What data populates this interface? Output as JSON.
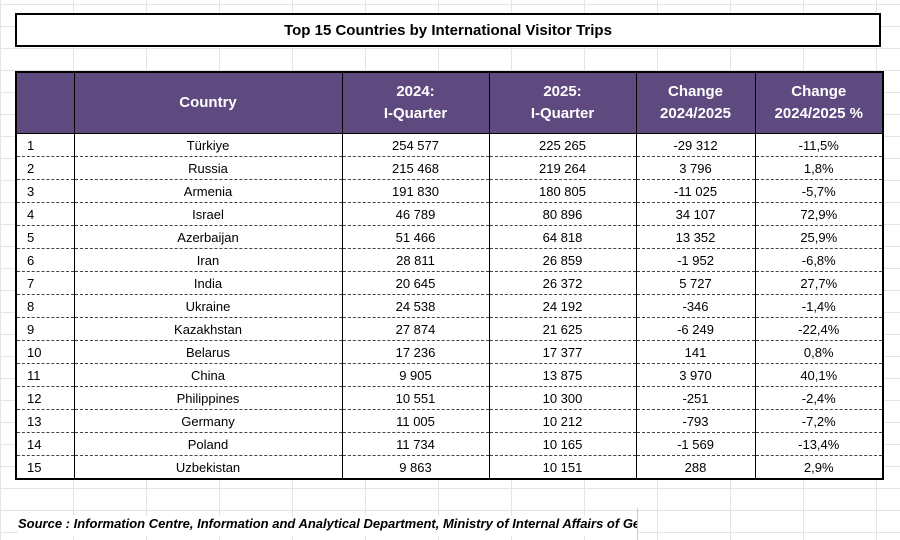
{
  "title": "Top 15 Countries by International Visitor Trips",
  "table": {
    "headers": [
      "",
      "Country",
      "2024:\nI-Quarter",
      "2025:\nI-Quarter",
      "Change\n2024/2025",
      "Change\n2024/2025 %"
    ],
    "rows": [
      [
        "1",
        "Türkiye",
        "254 577",
        "225 265",
        "-29 312",
        "-11,5%"
      ],
      [
        "2",
        "Russia",
        "215 468",
        "219 264",
        "3 796",
        "1,8%"
      ],
      [
        "3",
        "Armenia",
        "191 830",
        "180 805",
        "-11 025",
        "-5,7%"
      ],
      [
        "4",
        "Israel",
        "46 789",
        "80 896",
        "34 107",
        "72,9%"
      ],
      [
        "5",
        "Azerbaijan",
        "51 466",
        "64 818",
        "13 352",
        "25,9%"
      ],
      [
        "6",
        "Iran",
        "28 811",
        "26 859",
        "-1 952",
        "-6,8%"
      ],
      [
        "7",
        "India",
        "20 645",
        "26 372",
        "5 727",
        "27,7%"
      ],
      [
        "8",
        "Ukraine",
        "24 538",
        "24 192",
        "-346",
        "-1,4%"
      ],
      [
        "9",
        "Kazakhstan",
        "27 874",
        "21 625",
        "-6 249",
        "-22,4%"
      ],
      [
        "10",
        "Belarus",
        "17 236",
        "17 377",
        "141",
        "0,8%"
      ],
      [
        "11",
        "China",
        "9 905",
        "13 875",
        "3 970",
        "40,1%"
      ],
      [
        "12",
        "Philippines",
        "10 551",
        "10 300",
        "-251",
        "-2,4%"
      ],
      [
        "13",
        "Germany",
        "11 005",
        "10 212",
        "-793",
        "-7,2%"
      ],
      [
        "14",
        "Poland",
        "11 734",
        "10 165",
        "-1 569",
        "-13,4%"
      ],
      [
        "15",
        "Uzbekistan",
        "9 863",
        "10 151",
        "288",
        "2,9%"
      ]
    ]
  },
  "source": "Source : Information Centre, Information and Analytical Department, Ministry of Internal Affairs of Georgi",
  "colors": {
    "header_bg": "#5f4a80",
    "header_text": "#ffffff",
    "border": "#000000"
  }
}
